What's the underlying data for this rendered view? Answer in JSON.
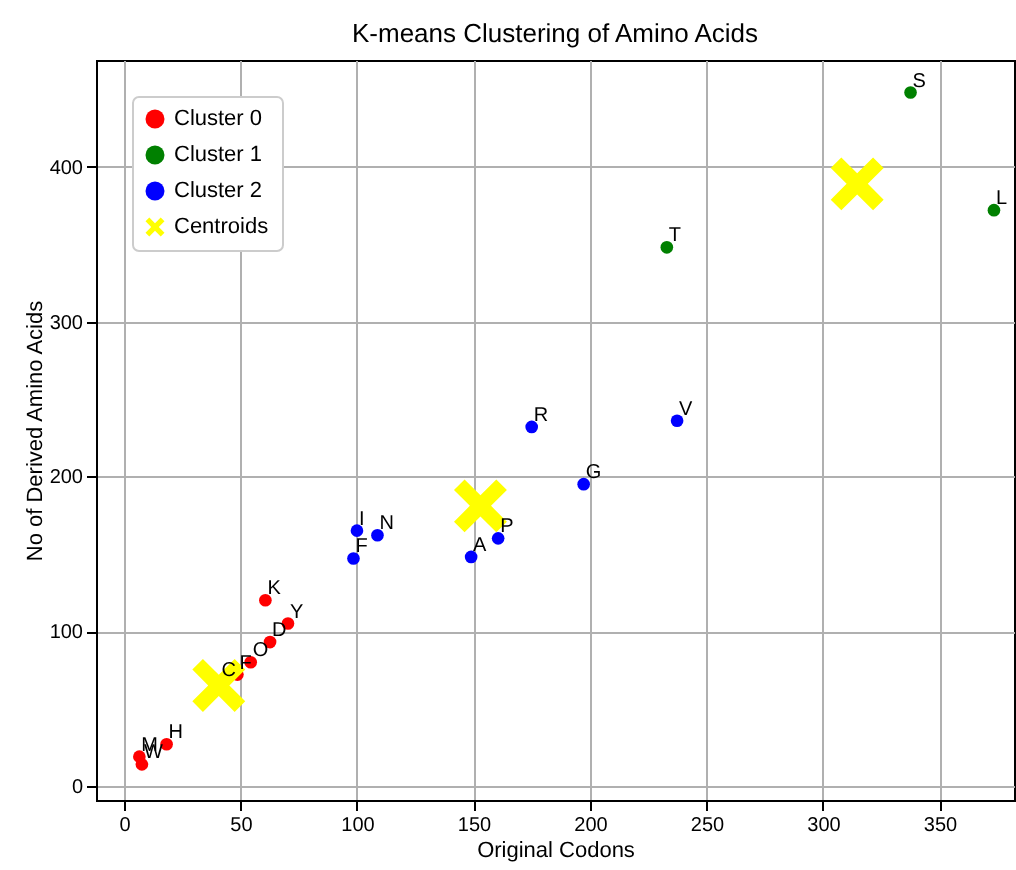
{
  "chart_data": {
    "type": "scatter",
    "title": "K-means Clustering of Amino Acids",
    "xlabel": "Original Codons",
    "ylabel": "No of Derived Amino Acids",
    "xlim": [
      -12,
      382
    ],
    "ylim": [
      -9,
      469
    ],
    "xticks": [
      0,
      50,
      100,
      150,
      200,
      250,
      300,
      350
    ],
    "yticks": [
      0,
      100,
      200,
      300,
      400
    ],
    "grid": true,
    "legend": "top left",
    "marker": "circle",
    "series": [
      {
        "name": "Cluster 0",
        "color": "#ff0000",
        "x": [
          6.6,
          7.7,
          18.3,
          41,
          48.7,
          54.4,
          62.7,
          60.7,
          70.4
        ],
        "values": [
          19,
          14,
          27,
          null,
          72,
          80,
          93,
          120,
          105
        ]
      },
      {
        "name": "Cluster 1",
        "color": "#008000",
        "x": [
          233,
          337.6,
          373.4
        ],
        "values": [
          348,
          448,
          372
        ]
      },
      {
        "name": "Cluster 2",
        "color": "#0000ff",
        "x": [
          100,
          98.5,
          108.8,
          149,
          160.6,
          175,
          197.3,
          237.4
        ],
        "values": [
          165,
          147,
          162,
          148,
          160,
          232,
          195,
          236
        ]
      },
      {
        "name": "Centroids",
        "color": "#ffff00",
        "marker": "cross",
        "x": [
          40.7,
          153,
          314.7
        ],
        "values": [
          65,
          181,
          389
        ]
      }
    ],
    "annotations": [
      {
        "text": "M",
        "x": 6.6,
        "y": 19
      },
      {
        "text": "W",
        "x": 7.7,
        "y": 14
      },
      {
        "text": "H",
        "x": 18.3,
        "y": 27
      },
      {
        "text": "C",
        "x": 41,
        "y": 67
      },
      {
        "text": "F",
        "x": 48.7,
        "y": 72
      },
      {
        "text": "O",
        "x": 54.4,
        "y": 80
      },
      {
        "text": "D",
        "x": 62.7,
        "y": 93
      },
      {
        "text": "K",
        "x": 60.7,
        "y": 120
      },
      {
        "text": "Y",
        "x": 70.4,
        "y": 105
      },
      {
        "text": "T",
        "x": 233,
        "y": 348
      },
      {
        "text": "S",
        "x": 337.6,
        "y": 448
      },
      {
        "text": "L",
        "x": 373.4,
        "y": 372
      },
      {
        "text": "I",
        "x": 100,
        "y": 165
      },
      {
        "text": "F",
        "x": 98.5,
        "y": 147
      },
      {
        "text": "N",
        "x": 108.8,
        "y": 162
      },
      {
        "text": "A",
        "x": 149,
        "y": 148
      },
      {
        "text": "P",
        "x": 160.6,
        "y": 160
      },
      {
        "text": "R",
        "x": 175,
        "y": 232
      },
      {
        "text": "G",
        "x": 197.3,
        "y": 195
      },
      {
        "text": "V",
        "x": 237.4,
        "y": 236
      }
    ]
  }
}
